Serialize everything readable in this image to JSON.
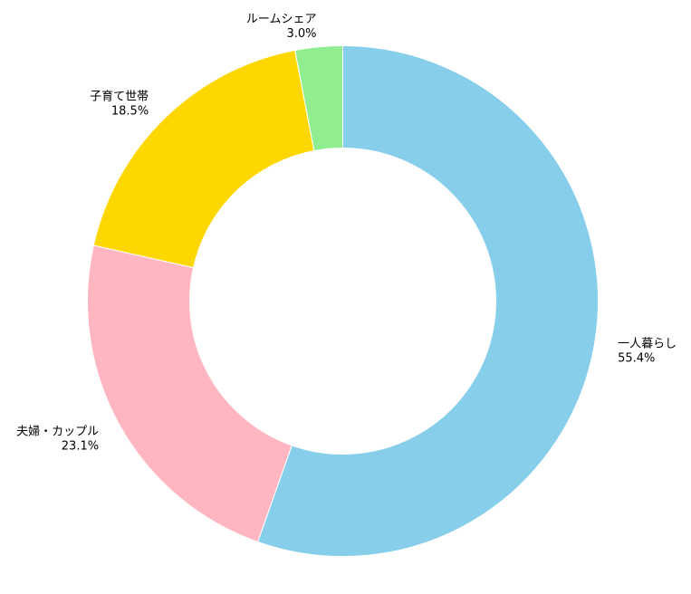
{
  "chart_data": {
    "type": "pie",
    "variant": "donut",
    "title": "",
    "start": "top",
    "direction": "clockwise",
    "slices": [
      {
        "label": "一人暮らし",
        "value": 55.4,
        "value_label": "55.4%",
        "color": "#87CEEB"
      },
      {
        "label": "夫婦・カップル",
        "value": 23.1,
        "value_label": "23.1%",
        "color": "#FFB6C1"
      },
      {
        "label": "子育て世帯",
        "value": 18.5,
        "value_label": "18.5%",
        "color": "#FFD700"
      },
      {
        "label": "ルームシェア",
        "value": 3.0,
        "value_label": "3.0%",
        "color": "#90EE90"
      }
    ]
  }
}
